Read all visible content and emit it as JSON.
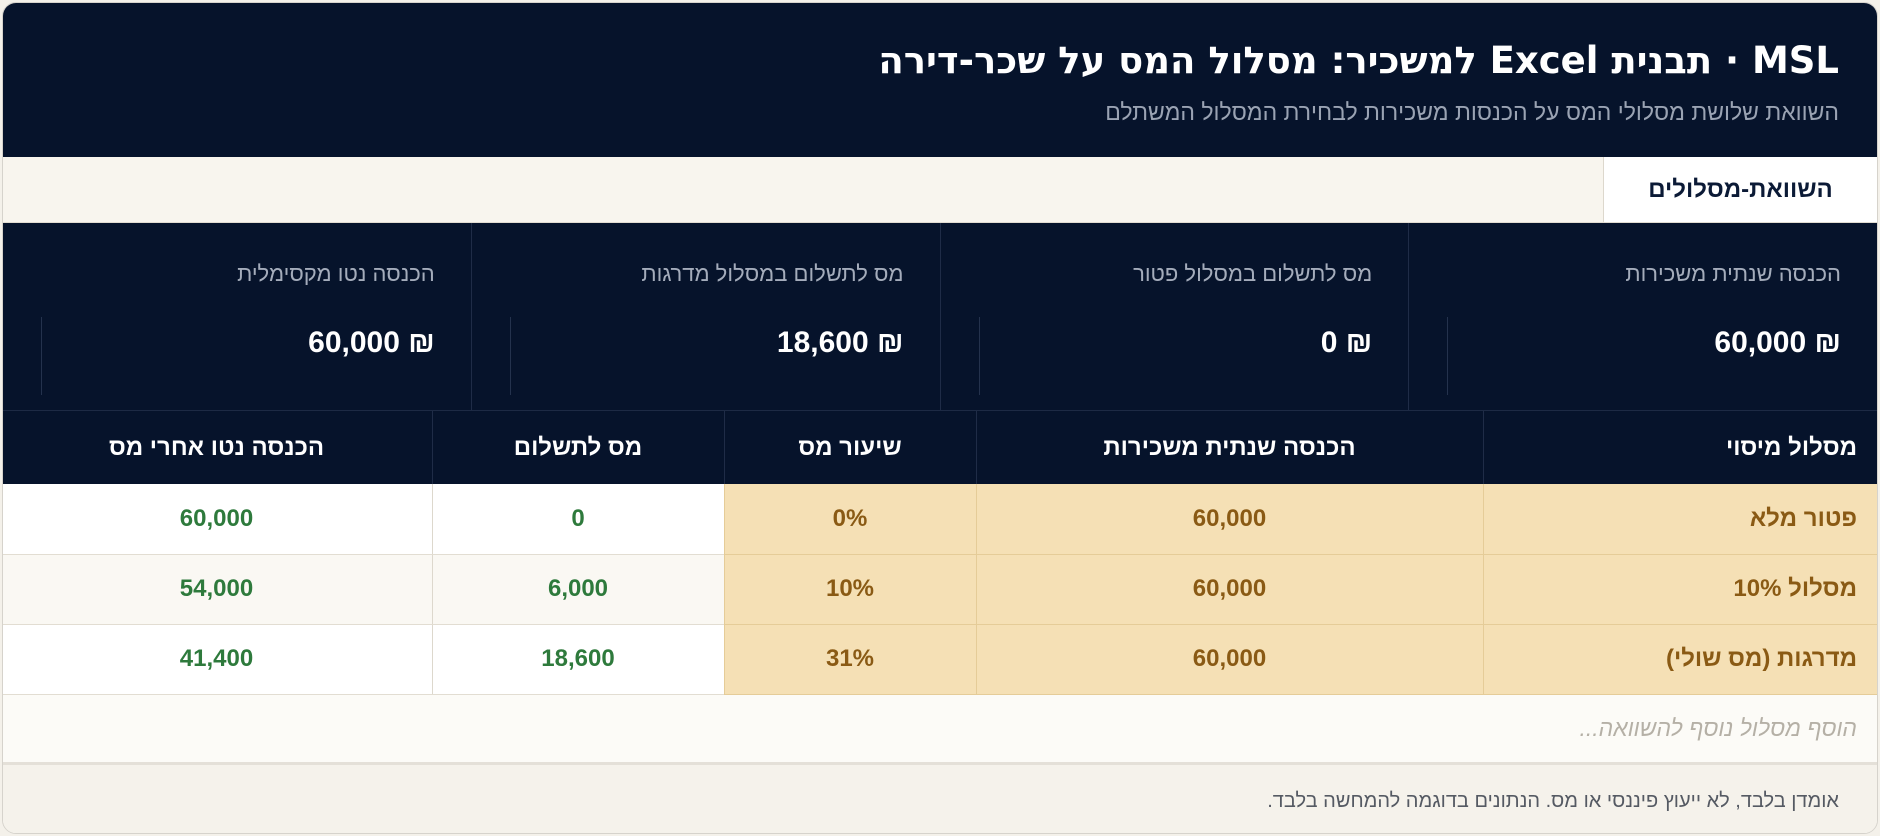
{
  "header": {
    "title": "MSL · תבנית Excel למשכיר: מסלול המס על שכר-דירה",
    "subtitle": "השוואת שלושת מסלולי המס על הכנסות משכירות לבחירת המסלול המשתלם"
  },
  "tabs": [
    {
      "label": "השוואת-מסלולים",
      "active": true
    }
  ],
  "kpis": [
    {
      "label": "הכנסה שנתית משכירות",
      "value": "60,000 ₪"
    },
    {
      "label": "מס לתשלום במסלול פטור",
      "value": "0 ₪"
    },
    {
      "label": "מס לתשלום במסלול מדרגות",
      "value": "18,600 ₪"
    },
    {
      "label": "הכנסה נטו מקסימלית",
      "value": "60,000 ₪"
    }
  ],
  "table": {
    "columns": [
      "מסלול מיסוי",
      "הכנסה שנתית משכירות",
      "שיעור מס",
      "מס לתשלום",
      "הכנסה נטו אחרי מס"
    ],
    "rows": [
      [
        "פטור מלא",
        "60,000",
        "0%",
        "0",
        "60,000"
      ],
      [
        "מסלול 10%",
        "60,000",
        "10%",
        "6,000",
        "54,000"
      ],
      [
        "מדרגות (מס שולי)",
        "60,000",
        "31%",
        "18,600",
        "41,400"
      ]
    ],
    "add_row_placeholder": "הוסף מסלול נוסף להשוואה..."
  },
  "footer": {
    "disclaimer": "אומדן בלבד, לא ייעוץ פיננסי או מס. הנתונים בדוגמה להמחשה בלבד."
  },
  "colors": {
    "navy": "#06132b",
    "highlight": "#f5e0b5",
    "highlight_text": "#8a5a14",
    "positive_text": "#2e7a3c"
  }
}
